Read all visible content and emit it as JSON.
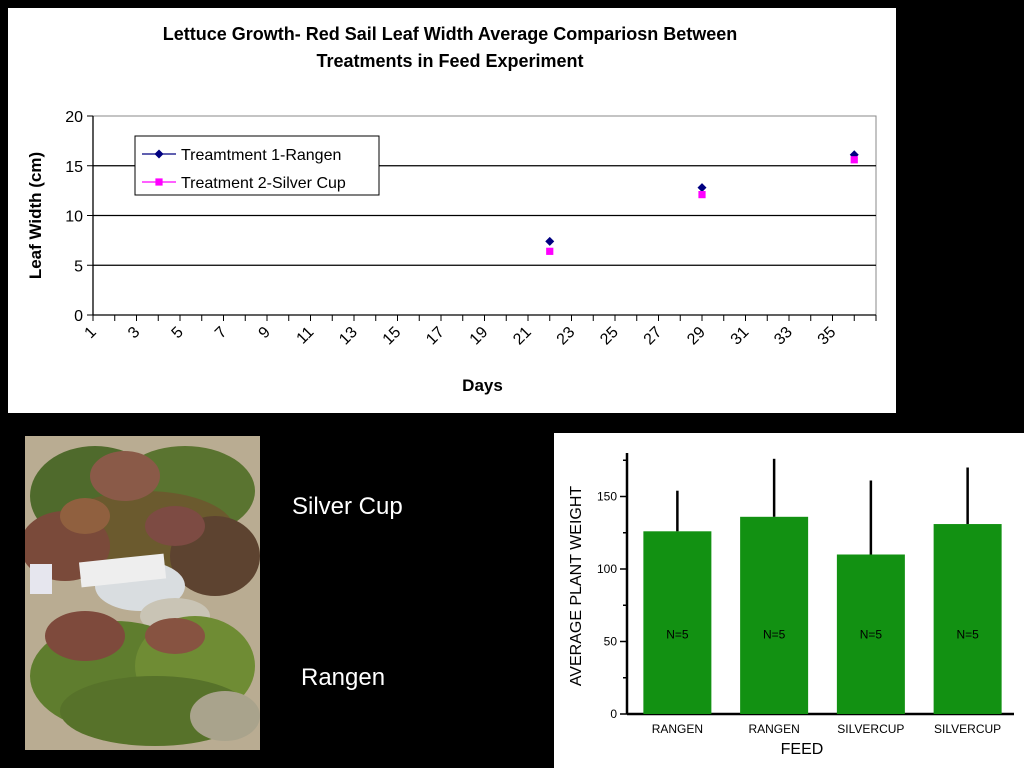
{
  "chart_data": [
    {
      "type": "scatter",
      "title": "Lettuce Growth- Red Sail Leaf Width Average Compariosn Between Treatments in Feed Experiment",
      "title_lines": [
        "Lettuce Growth- Red Sail Leaf Width Average Compariosn Between",
        "Treatments in Feed Experiment"
      ],
      "xlabel": "Days",
      "ylabel": "Leaf Width (cm)",
      "xlim": [
        1,
        37
      ],
      "ylim": [
        0,
        20
      ],
      "x_ticks": [
        1,
        3,
        5,
        7,
        9,
        11,
        13,
        15,
        17,
        19,
        21,
        23,
        25,
        27,
        29,
        31,
        33,
        35
      ],
      "y_ticks": [
        0,
        5,
        10,
        15,
        20
      ],
      "grid": "horizontal",
      "legend": "top-left",
      "series": [
        {
          "name": "Treamtment 1-Rangen",
          "color": "#000080",
          "marker": "diamond",
          "points": [
            {
              "x": 22,
              "y": 7.4
            },
            {
              "x": 29,
              "y": 12.8
            },
            {
              "x": 36,
              "y": 16.1
            }
          ]
        },
        {
          "name": "Treatment 2-Silver Cup",
          "color": "#FF00FF",
          "marker": "square",
          "points": [
            {
              "x": 22,
              "y": 6.4
            },
            {
              "x": 29,
              "y": 12.1
            },
            {
              "x": 36,
              "y": 15.6
            }
          ]
        }
      ]
    },
    {
      "type": "bar",
      "xlabel": "FEED",
      "ylabel": "AVERAGE PLANT WEIGHT",
      "ylim": [
        0,
        180
      ],
      "y_ticks": [
        0,
        50,
        100,
        150
      ],
      "bar_color": "#129112",
      "categories": [
        "RANGEN",
        "RANGEN",
        "SILVERCUP",
        "SILVERCUP"
      ],
      "values": [
        126,
        136,
        110,
        131
      ],
      "error_upper": [
        154,
        176,
        161,
        170
      ],
      "bar_labels": [
        "N=5",
        "N=5",
        "N=5",
        "N=5"
      ]
    }
  ],
  "photo": {
    "description_icon": "lettuce-photo",
    "labels": {
      "top": "Silver Cup",
      "bottom": "Rangen"
    }
  }
}
